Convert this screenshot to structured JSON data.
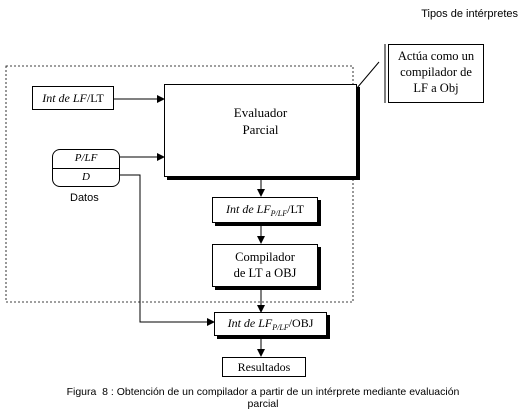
{
  "header": {
    "title": "Tipos de intérpretes"
  },
  "callout": {
    "lines": [
      "Actúa como un",
      "compilador de",
      "LF a Obj"
    ]
  },
  "nodes": {
    "int_lf_lt": {
      "italic": "Int de LF",
      "rest": "/LT"
    },
    "evaluador": {
      "line1": "Evaluador",
      "line2": "Parcial"
    },
    "datos_top": "P/LF",
    "datos_bottom": "D",
    "datos_label": "Datos",
    "int_lfplf_lt": {
      "italic": "Int de LF",
      "sub": "P/LF",
      "rest": "/LT"
    },
    "compilador": {
      "line1": "Compilador",
      "line2": "de LT a OBJ"
    },
    "int_lfplf_obj": {
      "italic": "Int de LF",
      "sub": "P/LF",
      "rest": "/OBJ"
    },
    "resultados": "Resultados"
  },
  "caption": {
    "line1": "Figura  8 : Obtención de un compilador a partir de un intérprete mediante evaluación",
    "line2": "parcial"
  }
}
